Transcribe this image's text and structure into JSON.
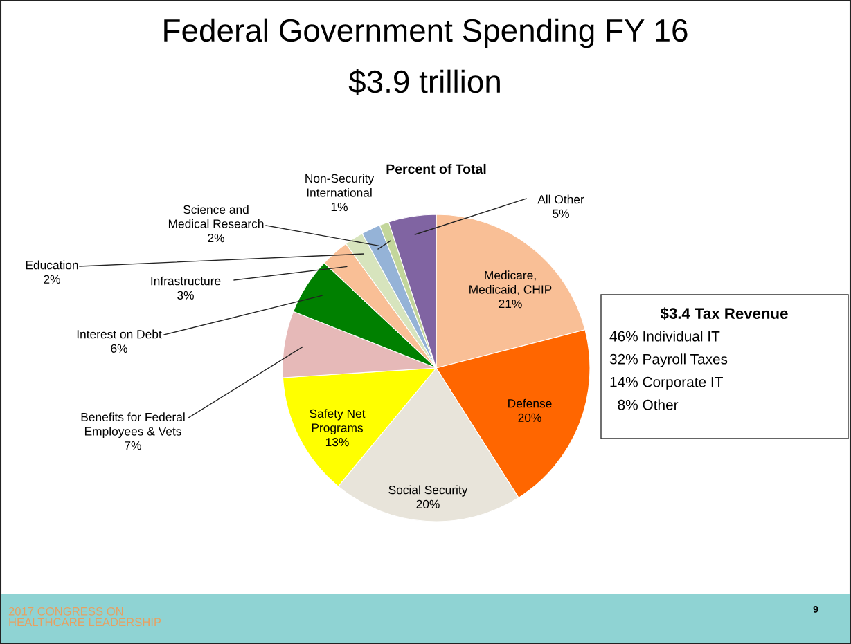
{
  "chart_data": {
    "type": "pie",
    "title": "Federal Government Spending FY 16",
    "subtitle": "$3.9 trillion",
    "legend_title": "Percent of Total",
    "categories": [
      "Medicare,\nMedicaid, CHIP",
      "Defense",
      "Social Security",
      "Safety Net\nPrograms",
      "Benefits for Federal\nEmployees & Vets",
      "Interest on Debt",
      "Infrastructure",
      "Education",
      "Science and\nMedical Research",
      "Non-Security\nInternational",
      "All Other"
    ],
    "values": [
      21,
      20,
      20,
      13,
      7,
      6,
      3,
      2,
      2,
      1,
      5
    ],
    "value_labels": [
      "21%",
      "20%",
      "20%",
      "13%",
      "7%",
      "6%",
      "3%",
      "2%",
      "2%",
      "1%",
      "5%"
    ],
    "colors": [
      "#f9bf96",
      "#ff6600",
      "#e8e4da",
      "#ffff00",
      "#e6b9b8",
      "#008000",
      "#f9bf96",
      "#d7e4bd",
      "#95b3d7",
      "#c3d69b",
      "#8064a2"
    ],
    "legend": false,
    "annotations": [
      "$3.4 Tax Revenue",
      "46% Individual IT",
      "32% Payroll Taxes",
      "14% Corporate IT",
      "  8% Other",
      "2017 CONGRESS ON\nHEALTHCARE LEADERSHIP",
      "9"
    ]
  }
}
